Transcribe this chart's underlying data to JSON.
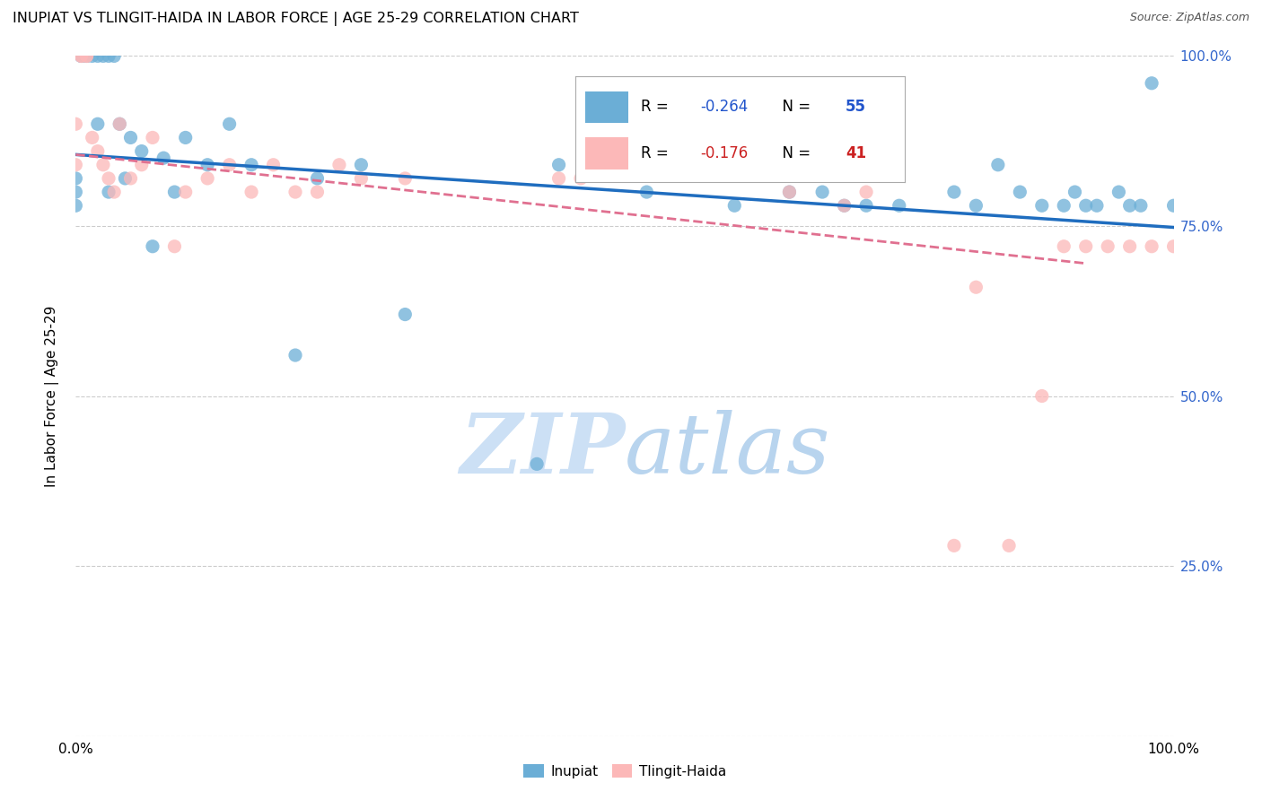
{
  "title": "INUPIAT VS TLINGIT-HAIDA IN LABOR FORCE | AGE 25-29 CORRELATION CHART",
  "source": "Source: ZipAtlas.com",
  "ylabel": "In Labor Force | Age 25-29",
  "xmin": 0.0,
  "xmax": 1.0,
  "ymin": 0.0,
  "ymax": 1.0,
  "blue_color": "#6baed6",
  "pink_color": "#fcb8b8",
  "line_blue": "#1f6dbf",
  "line_pink": "#e07090",
  "watermark_color": "#cce0f5",
  "blue_scatter_x": [
    0.0,
    0.0,
    0.0,
    0.005,
    0.005,
    0.01,
    0.01,
    0.015,
    0.02,
    0.02,
    0.025,
    0.03,
    0.03,
    0.035,
    0.04,
    0.045,
    0.05,
    0.06,
    0.07,
    0.08,
    0.09,
    0.1,
    0.12,
    0.14,
    0.16,
    0.2,
    0.22,
    0.26,
    0.3,
    0.42,
    0.44,
    0.5,
    0.52,
    0.56,
    0.6,
    0.62,
    0.65,
    0.68,
    0.7,
    0.72,
    0.75,
    0.8,
    0.82,
    0.84,
    0.86,
    0.88,
    0.9,
    0.91,
    0.92,
    0.93,
    0.95,
    0.96,
    0.97,
    0.98,
    1.0
  ],
  "blue_scatter_y": [
    0.82,
    0.8,
    0.78,
    1.0,
    1.0,
    1.0,
    1.0,
    1.0,
    1.0,
    0.9,
    1.0,
    1.0,
    0.8,
    1.0,
    0.9,
    0.82,
    0.88,
    0.86,
    0.72,
    0.85,
    0.8,
    0.88,
    0.84,
    0.9,
    0.84,
    0.56,
    0.82,
    0.84,
    0.62,
    0.4,
    0.84,
    0.84,
    0.8,
    0.84,
    0.78,
    0.84,
    0.8,
    0.8,
    0.78,
    0.78,
    0.78,
    0.8,
    0.78,
    0.84,
    0.8,
    0.78,
    0.78,
    0.8,
    0.78,
    0.78,
    0.8,
    0.78,
    0.78,
    0.96,
    0.78
  ],
  "pink_scatter_x": [
    0.0,
    0.0,
    0.005,
    0.005,
    0.01,
    0.01,
    0.015,
    0.02,
    0.025,
    0.03,
    0.035,
    0.04,
    0.05,
    0.06,
    0.07,
    0.09,
    0.1,
    0.12,
    0.14,
    0.16,
    0.18,
    0.2,
    0.22,
    0.24,
    0.26,
    0.3,
    0.44,
    0.46,
    0.65,
    0.7,
    0.72,
    0.8,
    0.82,
    0.85,
    0.88,
    0.9,
    0.92,
    0.94,
    0.96,
    0.98,
    1.0
  ],
  "pink_scatter_y": [
    0.9,
    0.84,
    1.0,
    1.0,
    1.0,
    1.0,
    0.88,
    0.86,
    0.84,
    0.82,
    0.8,
    0.9,
    0.82,
    0.84,
    0.88,
    0.72,
    0.8,
    0.82,
    0.84,
    0.8,
    0.84,
    0.8,
    0.8,
    0.84,
    0.82,
    0.82,
    0.82,
    0.82,
    0.8,
    0.78,
    0.8,
    0.28,
    0.66,
    0.28,
    0.5,
    0.72,
    0.72,
    0.72,
    0.72,
    0.72,
    0.72
  ],
  "blue_line_x0": 0.0,
  "blue_line_x1": 1.0,
  "blue_line_y0": 0.855,
  "blue_line_y1": 0.748,
  "pink_line_x0": 0.0,
  "pink_line_x1": 0.92,
  "pink_line_y0": 0.855,
  "pink_line_y1": 0.695,
  "r_blue": "-0.264",
  "n_blue": "55",
  "r_pink": "-0.176",
  "n_pink": "41",
  "right_ytick_labels": [
    "25.0%",
    "50.0%",
    "75.0%",
    "100.0%"
  ],
  "right_ytick_values": [
    0.25,
    0.5,
    0.75,
    1.0
  ]
}
